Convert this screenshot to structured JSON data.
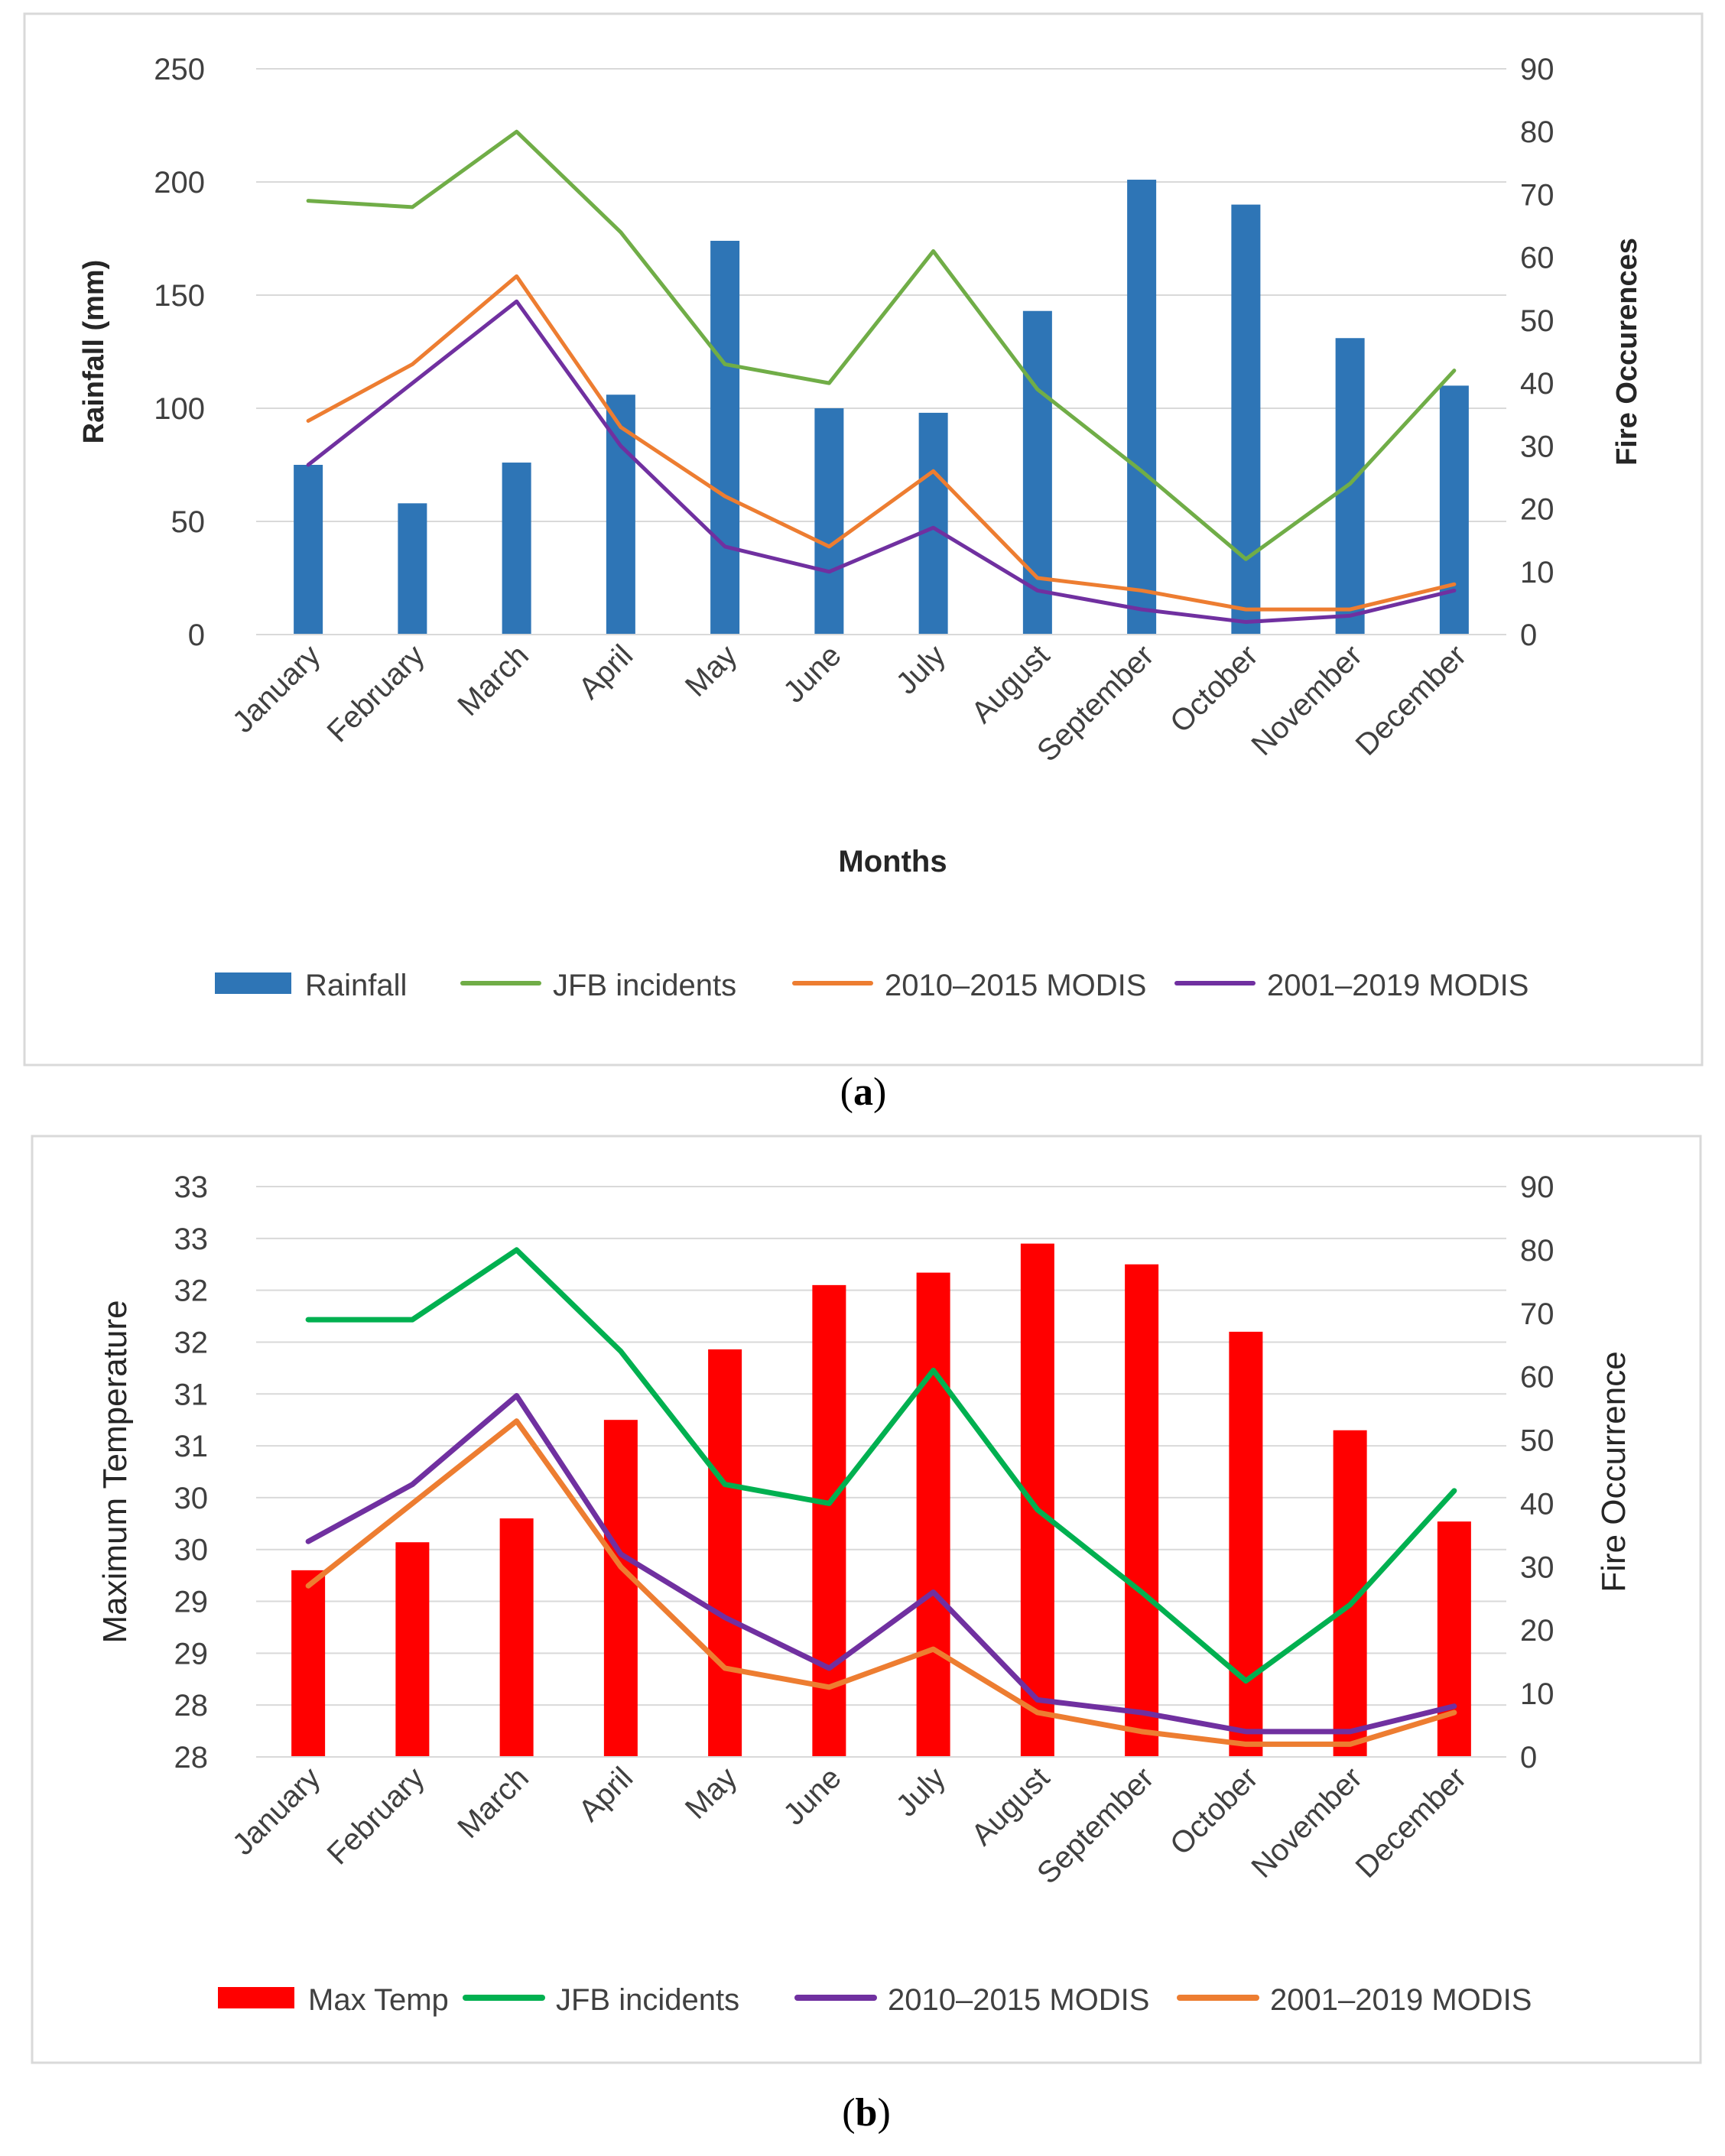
{
  "chart_data": [
    {
      "panel": "a",
      "caption": "(a)",
      "type": "bar+line",
      "categories": [
        "January",
        "February",
        "March",
        "April",
        "May",
        "June",
        "July",
        "August",
        "September",
        "October",
        "November",
        "December"
      ],
      "xlabel": "Months",
      "ylabel": "Rainfall (mm)",
      "y2label": "Fire Occurences",
      "ylim": [
        0,
        250
      ],
      "yticks": [
        0,
        50,
        100,
        150,
        200,
        250
      ],
      "y2lim": [
        0,
        90
      ],
      "y2ticks": [
        0,
        10,
        20,
        30,
        40,
        50,
        60,
        70,
        80,
        90
      ],
      "grid": true,
      "legend_position": "bottom",
      "bars": {
        "name": "Rainfall",
        "color": "#2e75b6",
        "axis": "left",
        "values": [
          75,
          58,
          76,
          106,
          174,
          100,
          98,
          143,
          201,
          190,
          131,
          110
        ]
      },
      "lines": [
        {
          "name": "JFB incidents",
          "color": "#70ad47",
          "axis": "right",
          "values": [
            69,
            68,
            80,
            64,
            43,
            40,
            61,
            39,
            26,
            12,
            24,
            42
          ]
        },
        {
          "name": "2010–2015  MODIS",
          "color": "#ed7d31",
          "axis": "right",
          "values": [
            34,
            43,
            57,
            33,
            22,
            14,
            26,
            9,
            7,
            4,
            4,
            8
          ]
        },
        {
          "name": "2001–2019 MODIS",
          "color": "#7030a0",
          "axis": "right",
          "values": [
            27,
            40,
            53,
            30,
            14,
            10,
            17,
            7,
            4,
            2,
            3,
            7
          ]
        }
      ]
    },
    {
      "panel": "b",
      "caption": "(b)",
      "type": "bar+line",
      "categories": [
        "January",
        "February",
        "March",
        "April",
        "May",
        "June",
        "July",
        "August",
        "September",
        "October",
        "November",
        "December"
      ],
      "xlabel": "",
      "ylabel": "Maximum Temperature",
      "y2label": "Fire Occurrence",
      "ylim": [
        28,
        33.5
      ],
      "ytick_labels": [
        "28",
        "28",
        "29",
        "29",
        "30",
        "30",
        "31",
        "31",
        "32",
        "32",
        "33",
        "33"
      ],
      "y2lim": [
        0,
        90
      ],
      "y2ticks": [
        0,
        10,
        20,
        30,
        40,
        50,
        60,
        70,
        80,
        90
      ],
      "grid": true,
      "legend_position": "bottom",
      "bars": {
        "name": "Max Temp",
        "color": "#ff0000",
        "axis": "left",
        "values": [
          29.8,
          30.07,
          30.3,
          31.25,
          31.93,
          32.55,
          32.67,
          32.95,
          32.75,
          32.1,
          31.15,
          30.27
        ]
      },
      "lines": [
        {
          "name": "JFB incidents",
          "color": "#00b050",
          "axis": "right",
          "values": [
            69,
            69,
            80,
            64,
            43,
            40,
            61,
            39,
            26,
            12,
            24,
            42
          ]
        },
        {
          "name": "2010–2015  MODIS",
          "color": "#7030a0",
          "axis": "right",
          "values": [
            34,
            43,
            57,
            32,
            22,
            14,
            26,
            9,
            7,
            4,
            4,
            8
          ]
        },
        {
          "name": "2001–2019 MODIS",
          "color": "#ed7d31",
          "axis": "right",
          "values": [
            27,
            40,
            53,
            30,
            14,
            11,
            17,
            7,
            4,
            2,
            2,
            7
          ]
        }
      ]
    }
  ]
}
